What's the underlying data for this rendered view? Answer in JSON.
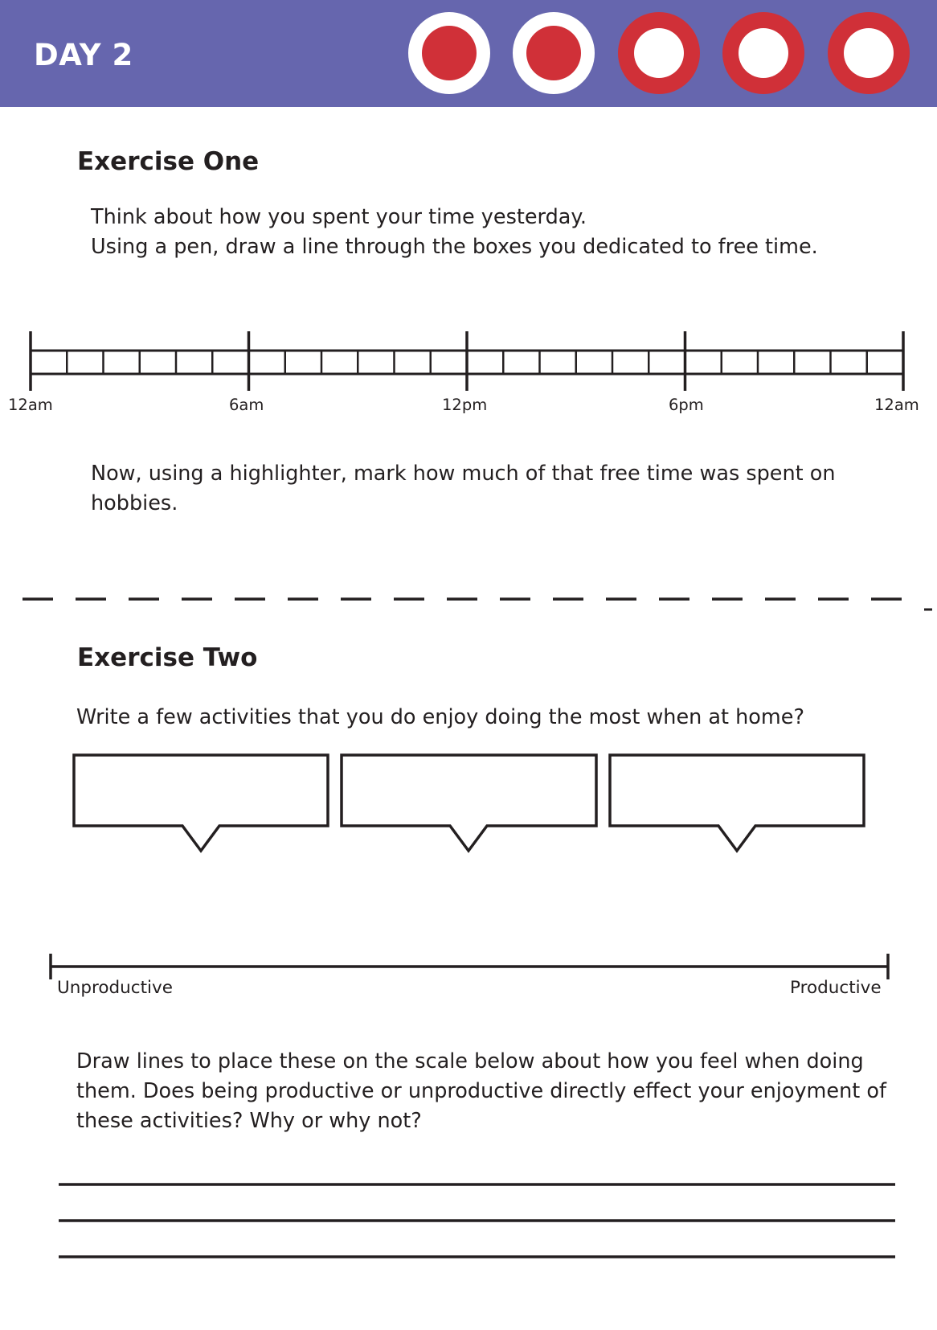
{
  "header": {
    "title": "DAY 2",
    "band_color": "#6666ae",
    "accent_color": "#d03038",
    "progress": {
      "completed": 2,
      "total": 5
    }
  },
  "exercise_one": {
    "heading": "Exercise One",
    "instructions": [
      "Think about how you spent your time yesterday.",
      "Using a pen, draw a line through the boxes you dedicated to free time."
    ],
    "timeline": {
      "hours": 24,
      "labels": [
        "12am",
        "6am",
        "12pm",
        "6pm",
        "12am"
      ]
    },
    "followup": [
      "Now, using a highlighter, mark how much of that free time was spent on",
      "hobbies."
    ]
  },
  "exercise_two": {
    "heading": "Exercise Two",
    "question": "Write a few activities that you do enjoy doing the most when at home?",
    "bubbles": [
      "",
      "",
      ""
    ],
    "scale": {
      "left_label": "Unproductive",
      "right_label": "Productive"
    },
    "prompt": [
      "Draw lines to place these on the scale below about how you feel when doing",
      "them. Does being productive or unproductive directly effect your enjoyment of",
      "these activities? Why or why not?"
    ],
    "answer_lines": 3
  }
}
